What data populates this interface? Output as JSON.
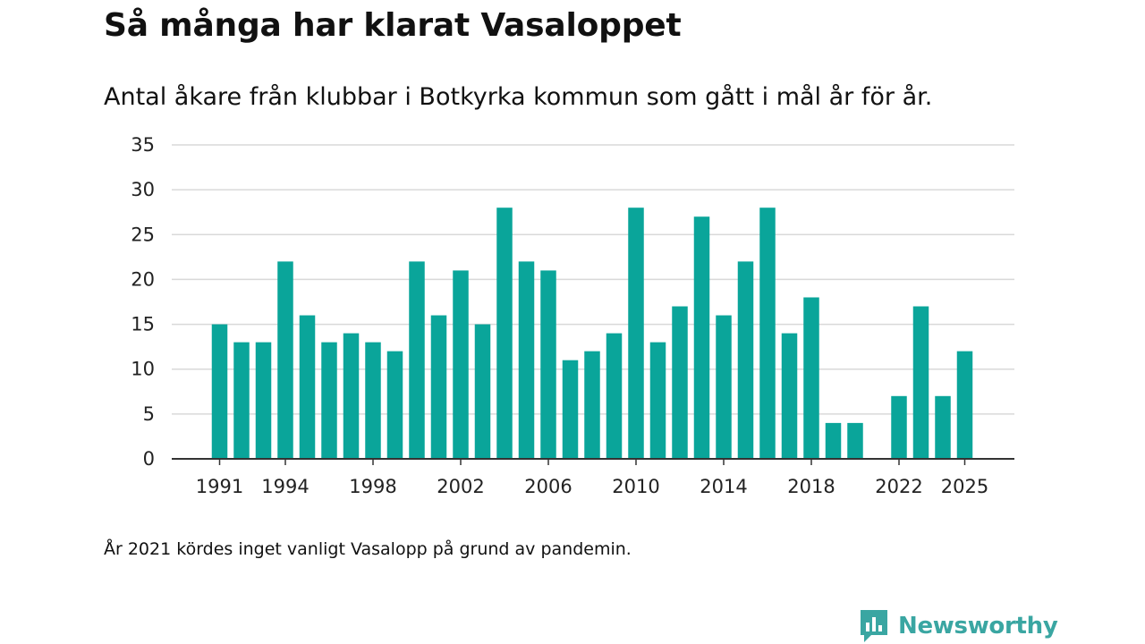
{
  "title": "Så många har klarat Vasaloppet",
  "subtitle": "Antal åkare från klubbar i Botkyrka kommun som gått i mål år för år.",
  "note": "År 2021 kördes inget vanligt Vasalopp på grund av pandemin.",
  "brand": {
    "name": "Newsworthy",
    "icon": "newsworthy-logo-icon",
    "color": "#3aa6a2"
  },
  "colors": {
    "bar": "#0aa59a",
    "grid": "#d9d9d9",
    "axis": "#333333"
  },
  "chart_data": {
    "type": "bar",
    "x": [
      1991,
      1992,
      1993,
      1994,
      1995,
      1996,
      1997,
      1998,
      1999,
      2000,
      2001,
      2002,
      2003,
      2004,
      2005,
      2006,
      2007,
      2008,
      2009,
      2010,
      2011,
      2012,
      2013,
      2014,
      2015,
      2016,
      2017,
      2018,
      2019,
      2020,
      2021,
      2022,
      2023,
      2024,
      2025
    ],
    "values": [
      15,
      13,
      13,
      22,
      16,
      13,
      14,
      13,
      12,
      22,
      16,
      21,
      15,
      28,
      22,
      21,
      11,
      12,
      14,
      28,
      13,
      17,
      27,
      16,
      22,
      28,
      14,
      18,
      4,
      4,
      null,
      7,
      17,
      7,
      12
    ],
    "xticks": [
      1991,
      1994,
      1998,
      2002,
      2006,
      2010,
      2014,
      2018,
      2022,
      2025
    ],
    "yticks": [
      0,
      5,
      10,
      15,
      20,
      25,
      30,
      35
    ],
    "ylim": [
      0,
      35
    ],
    "xlabel": "",
    "ylabel": "",
    "grid": true,
    "legend": "none"
  }
}
